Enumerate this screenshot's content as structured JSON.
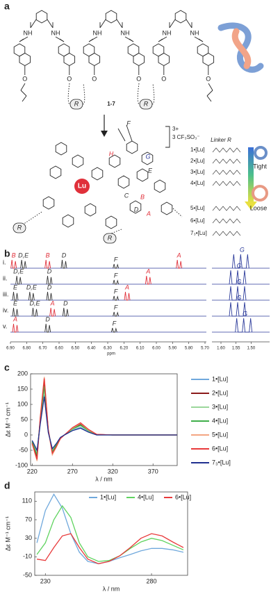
{
  "figure": {
    "panel_labels": [
      "a",
      "b",
      "c",
      "d"
    ],
    "structure": {
      "compound": "1-7",
      "amide_labels": [
        "NH",
        "NH",
        "NH",
        "NH",
        "NH",
        "NH"
      ],
      "ether_labels": [
        "O",
        "O",
        "O",
        "O",
        "O",
        "O"
      ],
      "linkers": [
        "R",
        "R",
        "R",
        "R"
      ],
      "metal": "Lu",
      "charge": "3+",
      "counterion": "3 CF₃SO₃⁻",
      "proton_labels": [
        {
          "label": "F",
          "color": "#333333"
        },
        {
          "label": "H",
          "color": "#e0303a"
        },
        {
          "label": "G",
          "color": "#2b3a9a"
        },
        {
          "label": "E",
          "color": "#333333"
        },
        {
          "label": "C",
          "color": "#333333"
        },
        {
          "label": "B",
          "color": "#e0303a"
        },
        {
          "label": "D",
          "color": "#333333"
        },
        {
          "label": "A",
          "color": "#e0303a"
        }
      ],
      "linker_key": {
        "title": "Linker R",
        "entries": [
          "1•[Lu]",
          "2•[Lu]",
          "3•[Lu]",
          "4•[Lu]",
          "5•[Lu]",
          "6•[Lu]",
          "7₃•[Lu]"
        ],
        "tight": "Tight",
        "loose": "Loose"
      }
    },
    "nmr": {
      "axis_label": "ppm",
      "xticks": [
        {
          "value": 6.9,
          "label": "6.90"
        },
        {
          "value": 6.8,
          "label": "6.80"
        },
        {
          "value": 6.7,
          "label": "6.70"
        },
        {
          "value": 6.6,
          "label": "6.60"
        },
        {
          "value": 6.5,
          "label": "6.50"
        },
        {
          "value": 6.4,
          "label": "6.40"
        },
        {
          "value": 6.3,
          "label": "6.30"
        },
        {
          "value": 6.2,
          "label": "6.20"
        },
        {
          "value": 6.1,
          "label": "6.10"
        },
        {
          "value": 6.0,
          "label": "6.00"
        },
        {
          "value": 5.9,
          "label": "5.90"
        },
        {
          "value": 5.8,
          "label": "5.80"
        },
        {
          "value": 5.7,
          "label": "5.70"
        },
        {
          "value": 1.6,
          "label": "1.60"
        },
        {
          "value": 1.55,
          "label": "1.55"
        },
        {
          "value": 1.5,
          "label": "1.50"
        }
      ],
      "rows": [
        {
          "label": "i.",
          "peaks": [
            {
              "ppm": 6.88,
              "label": "B",
              "color": "#e0303a"
            },
            {
              "ppm": 6.82,
              "label": "D,E",
              "color": "#333333"
            },
            {
              "ppm": 6.67,
              "label": "B",
              "color": "#e0303a"
            },
            {
              "ppm": 6.57,
              "label": "D",
              "color": "#333333"
            },
            {
              "ppm": 6.25,
              "label": "F",
              "color": "#333333"
            },
            {
              "ppm": 5.86,
              "label": "A",
              "color": "#e0303a"
            },
            {
              "ppm": 1.53,
              "label": "G",
              "color": "#2b3a9a"
            }
          ]
        },
        {
          "label": "ii.",
          "peaks": [
            {
              "ppm": 6.85,
              "label": "D,E",
              "color": "#333333"
            },
            {
              "ppm": 6.66,
              "label": "D",
              "color": "#333333"
            },
            {
              "ppm": 6.25,
              "label": "F",
              "color": "#333333"
            },
            {
              "ppm": 6.05,
              "label": "A",
              "color": "#e0303a"
            },
            {
              "ppm": 1.54,
              "label": "G",
              "color": "#2b3a9a"
            }
          ]
        },
        {
          "label": "iii.",
          "peaks": [
            {
              "ppm": 6.87,
              "label": "E",
              "color": "#333333"
            },
            {
              "ppm": 6.77,
              "label": "D,E",
              "color": "#333333"
            },
            {
              "ppm": 6.66,
              "label": "D",
              "color": "#333333"
            },
            {
              "ppm": 6.25,
              "label": "F",
              "color": "#333333"
            },
            {
              "ppm": 6.18,
              "label": "A",
              "color": "#e0303a"
            },
            {
              "ppm": 1.54,
              "label": "G",
              "color": "#2b3a9a"
            }
          ]
        },
        {
          "label": "iv.",
          "peaks": [
            {
              "ppm": 6.87,
              "label": "E",
              "color": "#333333"
            },
            {
              "ppm": 6.75,
              "label": "D,E",
              "color": "#333333"
            },
            {
              "ppm": 6.64,
              "label": "A",
              "color": "#e0303a"
            },
            {
              "ppm": 6.56,
              "label": "D",
              "color": "#333333"
            },
            {
              "ppm": 6.25,
              "label": "F",
              "color": "#333333"
            },
            {
              "ppm": 1.54,
              "label": "G",
              "color": "#2b3a9a"
            }
          ]
        },
        {
          "label": "v.",
          "peaks": [
            {
              "ppm": 6.87,
              "label": "A",
              "color": "#e0303a"
            },
            {
              "ppm": 6.67,
              "label": "D",
              "color": "#333333"
            },
            {
              "ppm": 6.26,
              "label": "F",
              "color": "#333333"
            },
            {
              "ppm": 1.52,
              "label": "G",
              "color": "#2b3a9a"
            }
          ]
        }
      ]
    }
  },
  "chart_data": [
    {
      "type": "line",
      "xlabel": "λ / nm",
      "ylabel": "Δε M⁻¹ cm⁻¹",
      "x": [
        220,
        226,
        230,
        235,
        240,
        245,
        250,
        255,
        260,
        270,
        280,
        290,
        300,
        320,
        350,
        400
      ],
      "xlim": [
        218,
        400
      ],
      "xticks": [
        220,
        270,
        320,
        370
      ],
      "ylim": [
        -100,
        200
      ],
      "yticks": [
        -100,
        -50,
        0,
        50,
        100,
        150,
        200
      ],
      "series": [
        {
          "name": "1•[Lu]",
          "color": "#6fa8dc",
          "values": [
            -20,
            -55,
            40,
            130,
            10,
            -45,
            -30,
            -10,
            0,
            15,
            25,
            10,
            0,
            0,
            0,
            0
          ]
        },
        {
          "name": "2•[Lu]",
          "color": "#8b1a1a",
          "values": [
            -25,
            -70,
            50,
            170,
            15,
            -55,
            -35,
            -10,
            0,
            20,
            35,
            15,
            2,
            0,
            0,
            0
          ]
        },
        {
          "name": "3•[Lu]",
          "color": "#9ad79a",
          "values": [
            -20,
            -60,
            45,
            150,
            12,
            -50,
            -30,
            -10,
            0,
            18,
            30,
            12,
            0,
            0,
            0,
            0
          ]
        },
        {
          "name": "4•[Lu]",
          "color": "#3fae49",
          "values": [
            -22,
            -65,
            50,
            160,
            14,
            -55,
            -32,
            -10,
            0,
            20,
            32,
            14,
            1,
            0,
            0,
            0
          ]
        },
        {
          "name": "5•[Lu]",
          "color": "#f4a582",
          "values": [
            -30,
            -85,
            60,
            190,
            15,
            -65,
            -40,
            -12,
            0,
            22,
            38,
            16,
            2,
            0,
            0,
            0
          ]
        },
        {
          "name": "6•[Lu]",
          "color": "#e8393a",
          "values": [
            -28,
            -80,
            55,
            185,
            18,
            -60,
            -38,
            -12,
            0,
            24,
            40,
            18,
            2,
            0,
            0,
            0
          ]
        },
        {
          "name": "7₃•[Lu]",
          "color": "#1f2f8f",
          "values": [
            -18,
            -50,
            35,
            125,
            8,
            -45,
            -28,
            -8,
            0,
            14,
            22,
            9,
            0,
            0,
            0,
            0
          ]
        }
      ]
    },
    {
      "type": "line",
      "xlabel": "λ / nm",
      "ylabel": "Δε M⁻¹ cm⁻¹",
      "x": [
        226,
        230,
        234,
        238,
        242,
        246,
        250,
        255,
        260,
        265,
        270,
        275,
        280,
        285,
        290,
        295
      ],
      "xlim": [
        225,
        297
      ],
      "xticks": [
        230,
        280
      ],
      "ylim": [
        -50,
        130
      ],
      "yticks": [
        -50,
        -10,
        30,
        70,
        110
      ],
      "series": [
        {
          "name": "1•[Lu]",
          "color": "#6fa8dc",
          "values": [
            20,
            90,
            125,
            95,
            40,
            0,
            -20,
            -25,
            -20,
            -12,
            -5,
            3,
            8,
            8,
            5,
            0
          ]
        },
        {
          "name": "4•[Lu]",
          "color": "#5fd35f",
          "values": [
            -5,
            20,
            70,
            100,
            75,
            20,
            -10,
            -20,
            -18,
            -8,
            8,
            22,
            30,
            25,
            15,
            5
          ]
        },
        {
          "name": "6•[Lu]",
          "color": "#e8393a",
          "values": [
            -15,
            -18,
            10,
            35,
            40,
            10,
            -15,
            -25,
            -20,
            -8,
            10,
            30,
            40,
            35,
            22,
            10
          ]
        }
      ]
    }
  ]
}
